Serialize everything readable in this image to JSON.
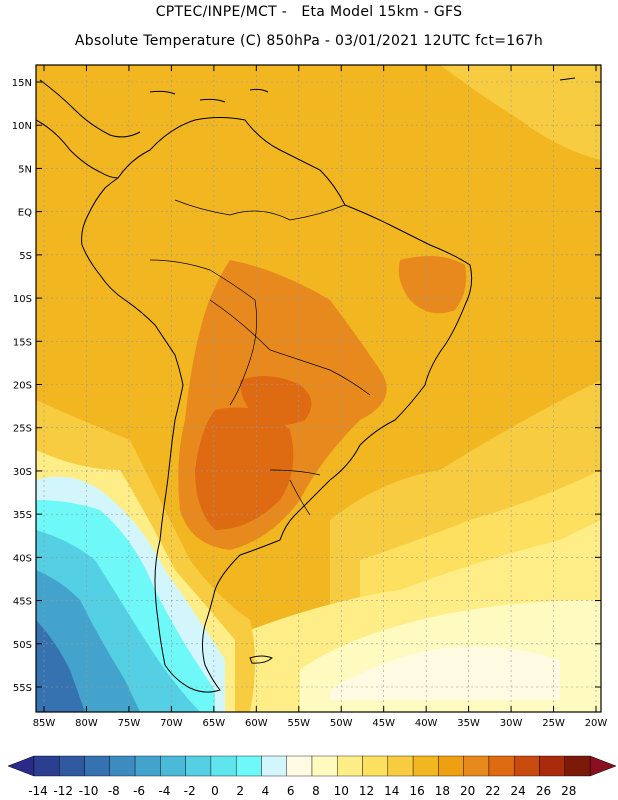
{
  "header": {
    "line1": "CPTEC/INPE/MCT -   Eta Model 15km - GFS",
    "line2": "Absolute Temperature (C) 850hPa - 03/01/2021 12UTC fct=167h"
  },
  "map": {
    "lat_labels": [
      "15N",
      "10N",
      "5N",
      "EQ",
      "5S",
      "10S",
      "15S",
      "20S",
      "25S",
      "30S",
      "35S",
      "40S",
      "45S",
      "50S",
      "55S"
    ],
    "lon_labels": [
      "85W",
      "80W",
      "75W",
      "70W",
      "65W",
      "60W",
      "55W",
      "50W",
      "45W",
      "40W",
      "35W",
      "30W",
      "25W",
      "20W"
    ],
    "colors": {
      "background_field": "#f2b620",
      "warm_core": "#e8891e",
      "hot_core": "#d6671a",
      "coastline": "#000000"
    }
  },
  "colorbar": {
    "labels": [
      "-14",
      "-12",
      "-10",
      "-8",
      "-6",
      "-4",
      "-2",
      "0",
      "2",
      "4",
      "6",
      "8",
      "10",
      "12",
      "14",
      "16",
      "18",
      "20",
      "22",
      "24",
      "26",
      "28"
    ],
    "colors": [
      "#2a3f8f",
      "#3059a0",
      "#3672b0",
      "#3d8bbf",
      "#43a3cd",
      "#4bbad9",
      "#54cfe3",
      "#60e4ee",
      "#6ff8f8",
      "#d2f6fb",
      "#fffbe3",
      "#fffac0",
      "#ffee88",
      "#fde060",
      "#f8cc40",
      "#f2b620",
      "#eea012",
      "#e8891e",
      "#de6a12",
      "#c94a0e",
      "#aa2a0c",
      "#7c1a0a"
    ],
    "left_end_color": "#2a2a8a",
    "right_end_color": "#8a1020"
  }
}
